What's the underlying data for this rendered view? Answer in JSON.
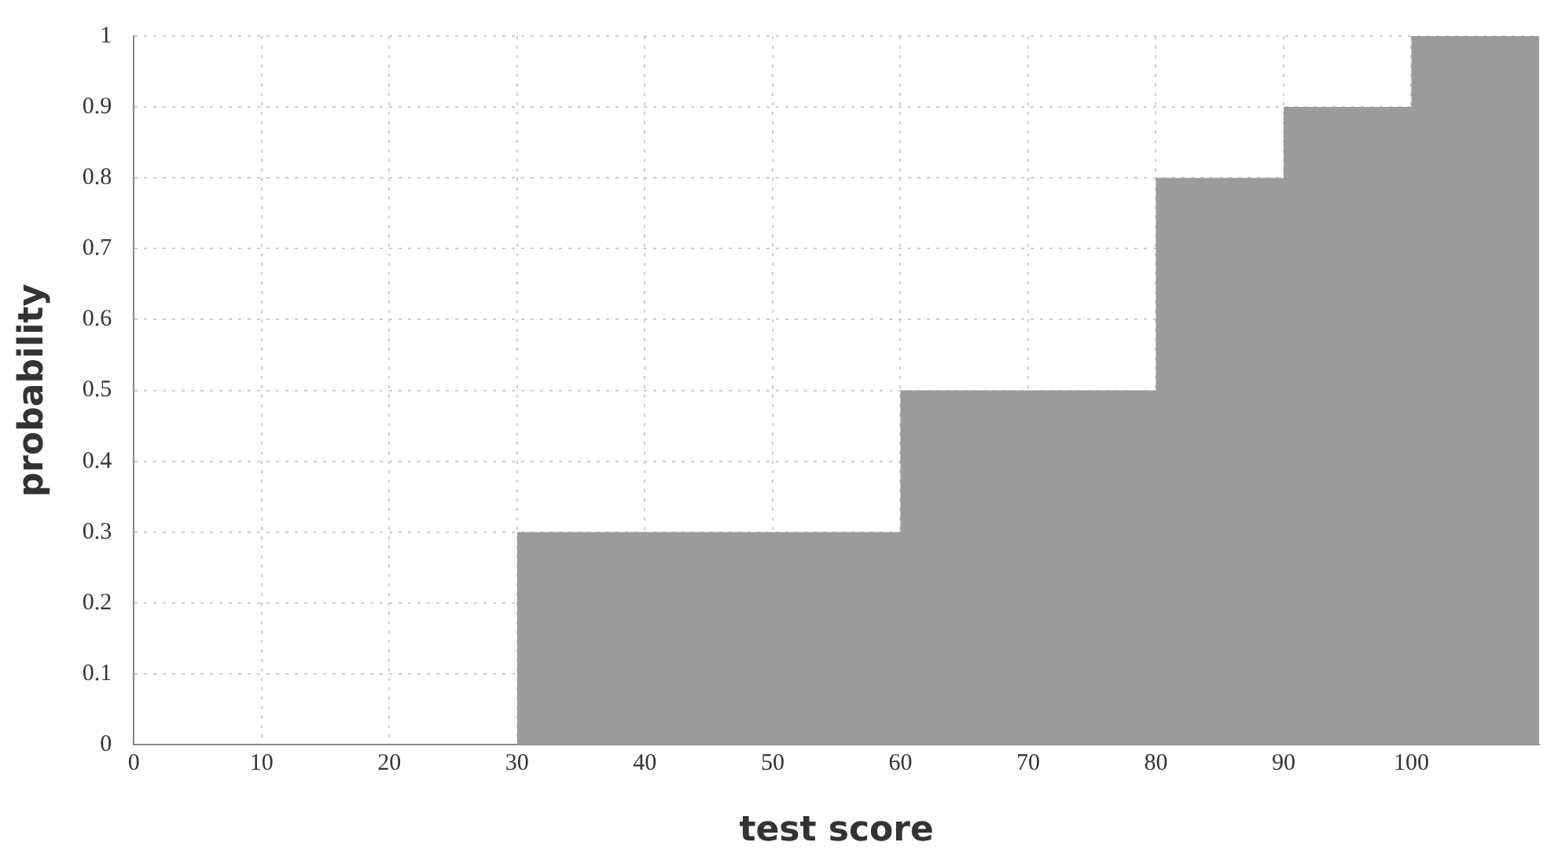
{
  "chart_data": {
    "type": "histogram",
    "xlabel": "test score",
    "ylabel": "probability",
    "bins": [
      0,
      30,
      60,
      80,
      90,
      100,
      110
    ],
    "values": [
      0,
      0.3,
      0.5,
      0.8,
      0.9,
      1
    ],
    "color": "#9b9b9b",
    "xlim": [
      0,
      110
    ],
    "xticks": [
      0,
      10,
      20,
      30,
      40,
      50,
      60,
      70,
      80,
      90,
      100
    ],
    "ylim": [
      0,
      1
    ],
    "yticks": [
      0,
      0.1,
      0.2,
      0.3,
      0.4,
      0.5,
      0.6,
      0.7,
      0.8,
      0.9,
      1
    ],
    "grid": true,
    "legend": false
  }
}
